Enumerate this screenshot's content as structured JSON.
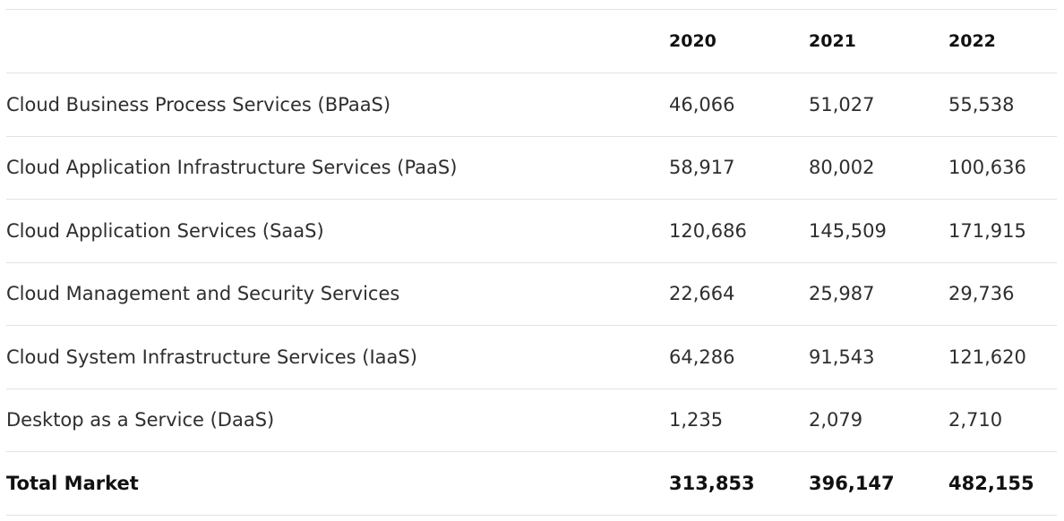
{
  "table": {
    "headers": [
      "",
      "2020",
      "2021",
      "2022"
    ],
    "rows": [
      {
        "label": "Cloud Business Process Services (BPaaS)",
        "y2020": "46,066",
        "y2021": "51,027",
        "y2022": "55,538"
      },
      {
        "label": "Cloud Application Infrastructure Services (PaaS)",
        "y2020": "58,917",
        "y2021": "80,002",
        "y2022": "100,636"
      },
      {
        "label": "Cloud Application Services (SaaS)",
        "y2020": "120,686",
        "y2021": "145,509",
        "y2022": "171,915"
      },
      {
        "label": "Cloud Management and Security Services",
        "y2020": "22,664",
        "y2021": "25,987",
        "y2022": "29,736"
      },
      {
        "label": "Cloud System Infrastructure Services (IaaS)",
        "y2020": "64,286",
        "y2021": "91,543",
        "y2022": "121,620"
      },
      {
        "label": "Desktop as a Service (DaaS)",
        "y2020": "1,235",
        "y2021": "2,079",
        "y2022": "2,710"
      }
    ],
    "total": {
      "label": "Total Market",
      "y2020": "313,853",
      "y2021": "396,147",
      "y2022": "482,155"
    }
  }
}
